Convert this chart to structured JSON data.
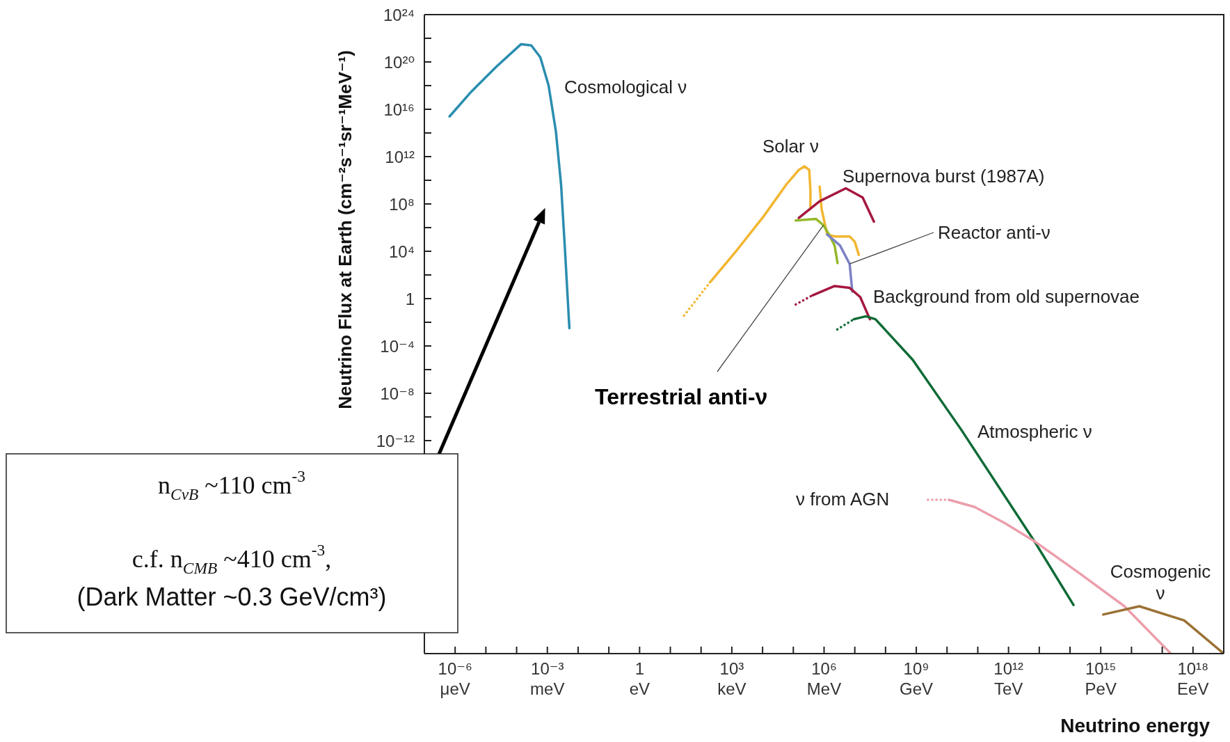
{
  "chart_data": {
    "type": "line",
    "xlabel": "Neutrino energy",
    "ylabel": "Neutrino Flux at Earth (cm⁻²s⁻¹sr⁻¹MeV⁻¹)",
    "log": "xy",
    "xlim": [
      1e-07,
      1e+19
    ],
    "ylim": [
      1e-30,
      1e+24
    ],
    "xticks": [
      {
        "value": 1e-06,
        "label": "10⁻⁶"
      },
      {
        "value": 1e-05,
        "label": null
      },
      {
        "value": 0.0001,
        "label": null
      },
      {
        "value": 0.001,
        "label": "10⁻³"
      },
      {
        "value": 0.01,
        "label": null
      },
      {
        "value": 0.1,
        "label": null
      },
      1,
      {
        "value": 10,
        "label": null
      },
      {
        "value": 100,
        "label": null
      },
      {
        "value": 1000.0,
        "label": "10³"
      },
      {
        "value": 10000.0,
        "label": null
      },
      {
        "value": 100000.0,
        "label": null
      },
      {
        "value": 1000000.0,
        "label": "10⁶"
      },
      {
        "value": 10000000.0,
        "label": null
      },
      {
        "value": 100000000.0,
        "label": null
      },
      {
        "value": 1000000000.0,
        "label": "10⁹"
      },
      {
        "value": 10000000000.0,
        "label": null
      },
      {
        "value": 100000000000.0,
        "label": null
      },
      {
        "value": 1000000000000.0,
        "label": "10¹²"
      },
      {
        "value": 10000000000000.0,
        "label": null
      },
      {
        "value": 100000000000000.0,
        "label": null
      },
      {
        "value": 1000000000000000.0,
        "label": "10¹⁵"
      },
      {
        "value": 1e+16,
        "label": null
      },
      {
        "value": 1e+17,
        "label": null
      },
      {
        "value": 1e+18,
        "label": "10¹⁸"
      }
    ],
    "yticks": [
      {
        "value": 1e+24,
        "label": "10²⁴"
      },
      {
        "value": 1e+22,
        "label": null
      },
      {
        "value": 1e+20,
        "label": "10²⁰"
      },
      {
        "value": 1e+18,
        "label": null
      },
      {
        "value": 1e+16,
        "label": "10¹⁶"
      },
      {
        "value": 100000000000000.0,
        "label": null
      },
      {
        "value": 1000000000000.0,
        "label": "10¹²"
      },
      {
        "value": 10000000000.0,
        "label": null
      },
      {
        "value": 100000000.0,
        "label": "10⁸"
      },
      {
        "value": 1000000.0,
        "label": null
      },
      {
        "value": 10000.0,
        "label": "10⁴"
      },
      {
        "value": 100,
        "label": null
      },
      1,
      {
        "value": 0.01,
        "label": null
      },
      {
        "value": 0.0001,
        "label": "10⁻⁴"
      },
      {
        "value": 1e-06,
        "label": null
      },
      {
        "value": 1e-08,
        "label": "10⁻⁸"
      },
      {
        "value": 1e-10,
        "label": null
      },
      {
        "value": 1e-12,
        "label": "10⁻¹²"
      },
      {
        "value": 1e-14,
        "label": null
      },
      {
        "value": 1e-16,
        "label": null
      },
      {
        "value": 1e-18,
        "label": null
      },
      {
        "value": 1e-20,
        "label": null
      },
      {
        "value": 1e-22,
        "label": null
      },
      {
        "value": 1e-24,
        "label": null
      },
      {
        "value": 1e-26,
        "label": null
      },
      {
        "value": 1e-28,
        "label": null
      }
    ],
    "series": [
      {
        "color": "#2a8db0",
        "x": [
          6.6e-07,
          3.4e-06,
          2.2e-05,
          0.00014,
          0.0003,
          0.00059,
          0.0011,
          0.0019,
          0.0028,
          0.0037,
          0.0052
        ],
        "values": [
          2500000000000000.0,
          3.2e+17,
          4e+19,
          3.2e+21,
          2.5e+21,
          2.5e+20,
          1e+18,
          130000000000000.0,
          4000000000.0,
          22000.0,
          0.0032
        ]
      },
      {
        "color": "#f2b630",
        "line_style": "dotted",
        "x": [
          28,
          195
        ],
        "values": [
          0.037,
          24
        ]
      },
      {
        "color": "#f2b630",
        "x": [
          195,
          1550,
          11000.0,
          59000.0,
          150000.0,
          230000.0,
          330000.0,
          360000.0,
          360000.0
        ],
        "values": [
          24,
          15000.0,
          9500000.0,
          4300000000.0,
          74000000000.0,
          150000000000.0,
          74000000000.0,
          1400000000.0,
          40000000.0
        ]
      },
      {
        "color": "#f2b630",
        "x": [
          720000.0,
          830000.0,
          1260000.0,
          2200000.0,
          6800000.0,
          10000000.0,
          13500000.0
        ],
        "values": [
          3000000000.0,
          40000000.0,
          260000.0,
          180000.0,
          180000.0,
          63000.0,
          5000.0
        ]
      },
      {
        "color": "#a5173f",
        "x": [
          150000.0,
          720000.0,
          5100000.0,
          18000000.0,
          42000000.0
        ],
        "values": [
          6600000.0,
          170000000.0,
          2100000000.0,
          350000000.0,
          3200000.0
        ]
      },
      {
        "color": "#94b82a",
        "x": [
          120000.0,
          550000.0,
          950000.0,
          1450000.0,
          2200000.0,
          2750000.0
        ],
        "values": [
          4000000.0,
          5400000.0,
          1600000.0,
          260000.0,
          31000.0,
          1000.0
        ]
      },
      {
        "color": "#7d80c4",
        "x": [
          1260000.0,
          3300000.0,
          6800000.0,
          8300000.0
        ],
        "values": [
          260000.0,
          31000.0,
          850,
          3.9
        ]
      },
      {
        "color": "#a5173f",
        "line_style": "dotted",
        "x": [
          120000.0,
          420000.0
        ],
        "values": [
          0.32,
          1.9
        ]
      },
      {
        "color": "#a5173f",
        "x": [
          420000.0,
          2200000.0,
          6800000.0,
          15000000.0,
          31000000.0
        ],
        "values": [
          1.9,
          11.5,
          8.1,
          1.35,
          0.018
        ]
      },
      {
        "color": "#0e6b36",
        "line_style": "dotted",
        "x": [
          2700000.0,
          9300000.0
        ],
        "values": [
          0.0025,
          0.018
        ]
      },
      {
        "color": "#0e6b36",
        "x": [
          9300000.0,
          23000000.0,
          47000000.0,
          760000000.0,
          29000000000.0,
          6900000000000.0,
          130000000000000.0
        ],
        "values": [
          0.018,
          0.032,
          0.018,
          6.9e-06,
          8.3e-12,
          3.2e-21,
          1.3e-26
        ]
      },
      {
        "color": "#ec9eab",
        "line_style": "dotted",
        "x": [
          2400000000.0,
          11500000000.0
        ],
        "values": [
          1e-17,
          1e-17
        ]
      },
      {
        "color": "#ec9eab",
        "x": [
          11500000000.0,
          78000000000.0,
          740000000000.0,
          6900000000000.0,
          200000000000000.0,
          5900000000000000.0,
          1.9e+17
        ],
        "values": [
          1e-17,
          2.5e-18,
          1.1e-19,
          3.2e-21,
          6.3e-24,
          1e-26,
          1e-30
        ]
      },
      {
        "color": "#9b7134",
        "x": [
          1200000000000000.0,
          1.8e+16,
          5.2e+17,
          1e+19
        ],
        "values": [
          2e-27,
          1e-26,
          6.3e-28,
          1e-30
        ]
      }
    ],
    "annotations": [
      "Cosmological ν",
      "Solar ν",
      "Supernova burst (1987A)",
      {
        "text": "Reactor anti-ν",
        "x": 6800000.0,
        "y": 850
      },
      "Background from old supernovae",
      {
        "text": "Terrestrial anti-ν",
        "x": 950000.0,
        "y": 1600000.0
      },
      "Atmospheric ν",
      "ν from AGN",
      "Cosmogenic\nν",
      "n$_{CνB}$ ~110 cm$^{-3}$",
      "c.f. n$_{CMB}$ ~410 cm$^{-3}$,",
      "(Dark Matter ~0.3 GeV/cm³)",
      "μeV",
      "meV",
      "eV",
      "keV",
      "MeV",
      "GeV",
      "TeV",
      "PeV",
      "EeV"
    ]
  }
}
